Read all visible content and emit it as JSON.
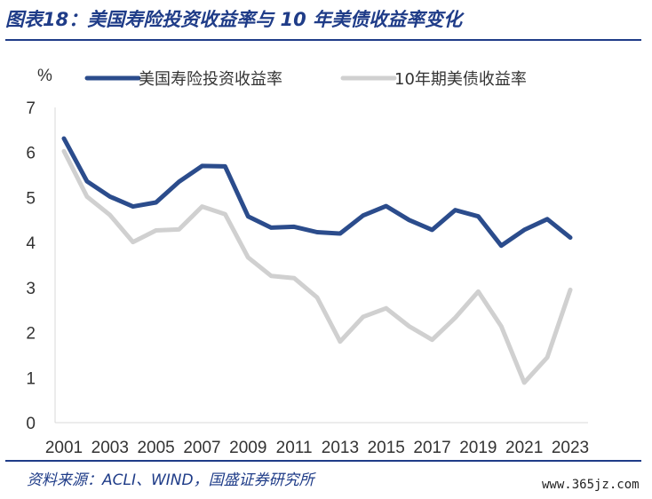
{
  "figure": {
    "title": "图表18：美国寿险投资收益率与 10 年美债收益率变化",
    "source": "资料来源：ACLI、WIND，国盛证券研究所",
    "watermark": "www.365jz.com",
    "accent_color": "#1F3C88"
  },
  "chart_data": {
    "type": "line",
    "title": "",
    "xlabel": "",
    "ylabel": "%",
    "ylim": [
      0,
      7
    ],
    "yticks": [
      0,
      1,
      2,
      3,
      4,
      5,
      6,
      7
    ],
    "x": [
      2001,
      2002,
      2003,
      2004,
      2005,
      2006,
      2007,
      2008,
      2009,
      2010,
      2011,
      2012,
      2013,
      2014,
      2015,
      2016,
      2017,
      2018,
      2019,
      2020,
      2021,
      2022,
      2023
    ],
    "xtick_labels": [
      "2001",
      "2003",
      "2005",
      "2007",
      "2009",
      "2011",
      "2013",
      "2015",
      "2017",
      "2019",
      "2021",
      "2023"
    ],
    "grid": false,
    "legend_position": "top",
    "series": [
      {
        "name": "美国寿险投资收益率",
        "color": "#2B4C8C",
        "values": [
          6.31,
          5.36,
          5.02,
          4.8,
          4.89,
          5.35,
          5.7,
          5.69,
          4.58,
          4.33,
          4.35,
          4.23,
          4.2,
          4.6,
          4.81,
          4.5,
          4.28,
          4.72,
          4.58,
          3.93,
          4.28,
          4.52,
          4.11
        ]
      },
      {
        "name": "10年期美债收益率",
        "color": "#D0D0D0",
        "values": [
          6.03,
          5.02,
          4.61,
          4.01,
          4.27,
          4.29,
          4.8,
          4.63,
          3.67,
          3.26,
          3.21,
          2.78,
          1.8,
          2.35,
          2.54,
          2.14,
          1.84,
          2.33,
          2.91,
          2.14,
          0.89,
          1.45,
          2.95
        ]
      }
    ]
  }
}
